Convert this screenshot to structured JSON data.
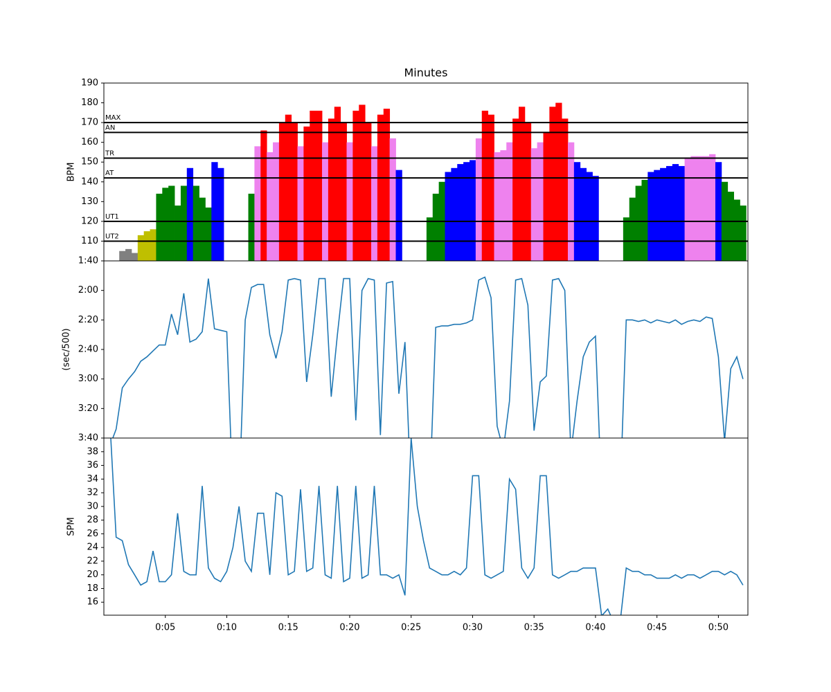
{
  "chart_data": [
    {
      "type": "area",
      "title": "Minutes",
      "y_label": "BPM",
      "x": [
        0.5,
        1,
        1.5,
        2,
        2.5,
        3,
        3.5,
        4,
        4.5,
        5,
        5.5,
        6,
        6.5,
        7,
        7.5,
        8,
        8.5,
        9,
        9.5,
        10,
        10.5,
        11,
        11.5,
        12,
        12.5,
        13,
        13.5,
        14,
        14.5,
        15,
        15.5,
        16,
        16.5,
        17,
        17.5,
        18,
        18.5,
        19,
        19.5,
        20,
        20.5,
        21,
        21.5,
        22,
        22.5,
        23,
        23.5,
        24,
        24.5,
        25,
        25.5,
        26,
        26.5,
        27,
        27.5,
        28,
        28.5,
        29,
        29.5,
        30,
        30.5,
        31,
        31.5,
        32,
        32.5,
        33,
        33.5,
        34,
        34.5,
        35,
        35.5,
        36,
        36.5,
        37,
        37.5,
        38,
        38.5,
        39,
        39.5,
        40,
        40.5,
        41,
        41.5,
        42,
        42.5,
        43,
        43.5,
        44,
        44.5,
        45,
        45.5,
        46,
        46.5,
        47,
        47.5,
        48,
        48.5,
        49,
        49.5,
        50,
        50.5,
        51,
        51.5,
        52
      ],
      "values": [
        null,
        null,
        105,
        106,
        104,
        113,
        115,
        116,
        134,
        137,
        138,
        128,
        138,
        147,
        138,
        132,
        127,
        150,
        147,
        null,
        null,
        null,
        null,
        134,
        158,
        166,
        155,
        160,
        170,
        174,
        170,
        158,
        168,
        176,
        176,
        160,
        172,
        178,
        170,
        160,
        176,
        179,
        170,
        158,
        174,
        177,
        162,
        146,
        null,
        null,
        null,
        null,
        122,
        134,
        140,
        145,
        147,
        149,
        150,
        151,
        162,
        176,
        174,
        155,
        156,
        160,
        172,
        178,
        170,
        157,
        160,
        165,
        178,
        180,
        172,
        160,
        150,
        147,
        145,
        143,
        null,
        null,
        null,
        null,
        122,
        132,
        138,
        141,
        145,
        146,
        147,
        148,
        149,
        148,
        152,
        153,
        153,
        153,
        154,
        150,
        140,
        135,
        131,
        128
      ],
      "below_color": "gray",
      "zones": [
        {
          "name": "UT2",
          "value": 110,
          "color": "#bfbf00"
        },
        {
          "name": "UT1",
          "value": 120,
          "color": "green"
        },
        {
          "name": "AT",
          "value": 142,
          "color": "blue"
        },
        {
          "name": "TR",
          "value": 152,
          "color": "violet"
        },
        {
          "name": "AN",
          "value": 165,
          "color": "red"
        },
        {
          "name": "MAX",
          "value": 170,
          "color": "red"
        }
      ],
      "xlim": [
        0,
        52.4
      ],
      "ylim": [
        100,
        190
      ],
      "yticks": [
        110,
        120,
        130,
        140,
        150,
        160,
        170,
        180,
        190
      ]
    },
    {
      "type": "line",
      "y_label": "(sec/500)",
      "color": "#1f77b4",
      "inverted": true,
      "x": [
        0.5,
        1,
        1.5,
        2,
        2.5,
        3,
        3.5,
        4,
        4.5,
        5,
        5.5,
        6,
        6.5,
        7,
        7.5,
        8,
        8.5,
        9,
        9.5,
        10,
        10.5,
        11,
        11.5,
        12,
        12.5,
        13,
        13.5,
        14,
        14.5,
        15,
        15.5,
        16,
        16.5,
        17,
        17.5,
        18,
        18.5,
        19,
        19.5,
        20,
        20.5,
        21,
        21.5,
        22,
        22.5,
        23,
        23.5,
        24,
        24.5,
        25,
        25.5,
        26,
        26.5,
        27,
        27.5,
        28,
        28.5,
        29,
        29.5,
        30,
        30.5,
        31,
        31.5,
        32,
        32.5,
        33,
        33.5,
        34,
        34.5,
        35,
        35.5,
        36,
        36.5,
        37,
        37.5,
        38,
        38.5,
        39,
        39.5,
        40,
        40.5,
        41,
        41.5,
        42,
        42.5,
        43,
        43.5,
        44,
        44.5,
        45,
        45.5,
        46,
        46.5,
        47,
        47.5,
        48,
        48.5,
        49,
        49.5,
        50,
        50.5,
        51,
        51.5,
        52
      ],
      "values": [
        225,
        214,
        186,
        180,
        175,
        168,
        165,
        161,
        157,
        157,
        136,
        150,
        122,
        155,
        153,
        148,
        112,
        146,
        147,
        148,
        260,
        260,
        140,
        118,
        116,
        116,
        150,
        166,
        148,
        113,
        112,
        113,
        182,
        150,
        112,
        112,
        192,
        150,
        112,
        112,
        208,
        120,
        112,
        113,
        218,
        115,
        114,
        190,
        155,
        260,
        null,
        null,
        260,
        145,
        144,
        144,
        143,
        143,
        142,
        140,
        113,
        111,
        125,
        212,
        228,
        195,
        113,
        112,
        130,
        215,
        182,
        178,
        113,
        112,
        120,
        230,
        195,
        165,
        155,
        151,
        260,
        null,
        null,
        260,
        140,
        140,
        141,
        140,
        142,
        140,
        141,
        142,
        140,
        143,
        141,
        140,
        141,
        138,
        139,
        165,
        222,
        173,
        165,
        180
      ],
      "xlim": [
        0,
        52.4
      ],
      "ylim": [
        100,
        220
      ],
      "yticks": [
        {
          "value": 100,
          "label": "1:40"
        },
        {
          "value": 120,
          "label": "2:00"
        },
        {
          "value": 140,
          "label": "2:20"
        },
        {
          "value": 160,
          "label": "2:40"
        },
        {
          "value": 180,
          "label": "3:00"
        },
        {
          "value": 200,
          "label": "3:20"
        },
        {
          "value": 220,
          "label": "3:40"
        }
      ]
    },
    {
      "type": "line",
      "y_label": "SPM",
      "color": "#1f77b4",
      "x": [
        0.5,
        1,
        1.5,
        2,
        2.5,
        3,
        3.5,
        4,
        4.5,
        5,
        5.5,
        6,
        6.5,
        7,
        7.5,
        8,
        8.5,
        9,
        9.5,
        10,
        10.5,
        11,
        11.5,
        12,
        12.5,
        13,
        13.5,
        14,
        14.5,
        15,
        15.5,
        16,
        16.5,
        17,
        17.5,
        18,
        18.5,
        19,
        19.5,
        20,
        20.5,
        21,
        21.5,
        22,
        22.5,
        23,
        23.5,
        24,
        24.5,
        25,
        25.5,
        26,
        26.5,
        27,
        27.5,
        28,
        28.5,
        29,
        29.5,
        30,
        30.5,
        31,
        31.5,
        32,
        32.5,
        33,
        33.5,
        34,
        34.5,
        35,
        35.5,
        36,
        36.5,
        37,
        37.5,
        38,
        38.5,
        39,
        39.5,
        40,
        40.5,
        41,
        41.5,
        42,
        42.5,
        43,
        43.5,
        44,
        44.5,
        45,
        45.5,
        46,
        46.5,
        47,
        47.5,
        48,
        48.5,
        49,
        49.5,
        50,
        50.5,
        51,
        51.5,
        52
      ],
      "values": [
        42,
        25.5,
        25,
        21.5,
        20,
        18.5,
        19,
        23.5,
        19,
        19,
        20,
        29,
        20.5,
        20,
        20,
        33,
        21,
        19.5,
        19,
        20.5,
        24,
        30,
        22,
        20.5,
        29,
        29,
        20,
        32,
        31.5,
        20,
        20.5,
        32.5,
        20.5,
        21,
        33,
        20,
        19.5,
        33,
        19,
        19.5,
        33,
        19.5,
        20,
        33,
        20,
        20,
        19.5,
        20,
        17,
        40,
        30,
        25,
        21,
        20.5,
        20,
        20,
        20.5,
        20,
        21,
        34.5,
        34.5,
        20,
        19.5,
        20,
        20.5,
        34,
        32.5,
        21,
        19.5,
        21,
        34.5,
        34.5,
        20,
        19.5,
        20,
        20.5,
        20.5,
        21,
        21,
        21,
        14,
        15,
        13,
        13,
        21,
        20.5,
        20.5,
        20,
        20,
        19.5,
        19.5,
        19.5,
        20,
        19.5,
        20,
        20,
        19.5,
        20,
        20.5,
        20.5,
        20,
        20.5,
        20,
        18.5
      ],
      "xlim": [
        0,
        52.4
      ],
      "ylim": [
        14.1,
        40
      ],
      "yticks": [
        16,
        18,
        20,
        22,
        24,
        26,
        28,
        30,
        32,
        34,
        36,
        38
      ],
      "xticks": [
        {
          "value": 5,
          "label": "0:05"
        },
        {
          "value": 10,
          "label": "0:10"
        },
        {
          "value": 15,
          "label": "0:15"
        },
        {
          "value": 20,
          "label": "0:20"
        },
        {
          "value": 25,
          "label": "0:25"
        },
        {
          "value": 30,
          "label": "0:30"
        },
        {
          "value": 35,
          "label": "0:35"
        },
        {
          "value": 40,
          "label": "0:40"
        },
        {
          "value": 45,
          "label": "0:45"
        },
        {
          "value": 50,
          "label": "0:50"
        }
      ]
    }
  ]
}
